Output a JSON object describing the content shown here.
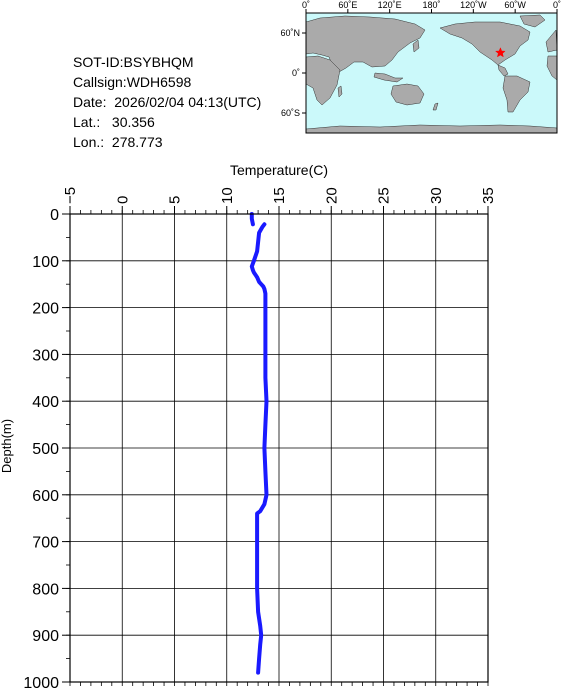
{
  "info": {
    "sot_id": "SOT-ID:BSYBHQM",
    "callsign": "Callsign:WDH6598",
    "date": "Date:  2026/02/04 04:13(UTC)",
    "lat": "Lat.:   30.356",
    "lon": "Lon.:  278.773"
  },
  "map": {
    "lon_labels": [
      "0˚",
      "60˚E",
      "120˚E",
      "180˚",
      "120˚W",
      "60˚W",
      "0˚"
    ],
    "lat_labels": [
      "60˚N",
      "0˚",
      "60˚S"
    ],
    "ocean_color": "#cbf9fa",
    "land_color": "#aaaaaa",
    "marker_color": "#ff0000",
    "marker_lat": 30.356,
    "marker_lon": 278.773
  },
  "chart_data": {
    "type": "line",
    "xlabel": "Temperature(C)",
    "ylabel": "Depth(m)",
    "xlim": [
      -5,
      35
    ],
    "ylim": [
      0,
      1000
    ],
    "y_inverted": true,
    "x_ticks": [
      -5,
      0,
      5,
      10,
      15,
      20,
      25,
      30,
      35
    ],
    "y_ticks": [
      0,
      100,
      200,
      300,
      400,
      500,
      600,
      700,
      800,
      900,
      1000
    ],
    "x_tick_labels": [
      "−5",
      "0",
      "5",
      "10",
      "15",
      "20",
      "25",
      "30",
      "35"
    ],
    "y_tick_labels": [
      "0",
      "100",
      "200",
      "300",
      "400",
      "500",
      "600",
      "700",
      "800",
      "900",
      "1000"
    ],
    "grid": true,
    "series": [
      {
        "color": "#1a1aff",
        "segments": [
          {
            "depth": [
              0,
              10,
              22
            ],
            "temperature": [
              12.4,
              12.4,
              12.5
            ]
          },
          {
            "depth": [
              22,
              28,
              40,
              60,
              80,
              100,
              112,
              120,
              125,
              135,
              145,
              150,
              155,
              160,
              170,
              200,
              250,
              300,
              350,
              400,
              450,
              500,
              550,
              600,
              620,
              635,
              640,
              660,
              700,
              750,
              800,
              850,
              880,
              900,
              920,
              950,
              980
            ],
            "temperature": [
              13.6,
              13.4,
              13.1,
              13.0,
              12.9,
              12.6,
              12.4,
              12.5,
              12.6,
              12.9,
              13.1,
              13.3,
              13.5,
              13.6,
              13.7,
              13.7,
              13.7,
              13.7,
              13.7,
              13.8,
              13.7,
              13.6,
              13.7,
              13.8,
              13.6,
              13.2,
              12.9,
              12.9,
              12.9,
              12.9,
              12.9,
              13.0,
              13.2,
              13.3,
              13.2,
              13.1,
              13.0
            ]
          }
        ]
      }
    ]
  }
}
